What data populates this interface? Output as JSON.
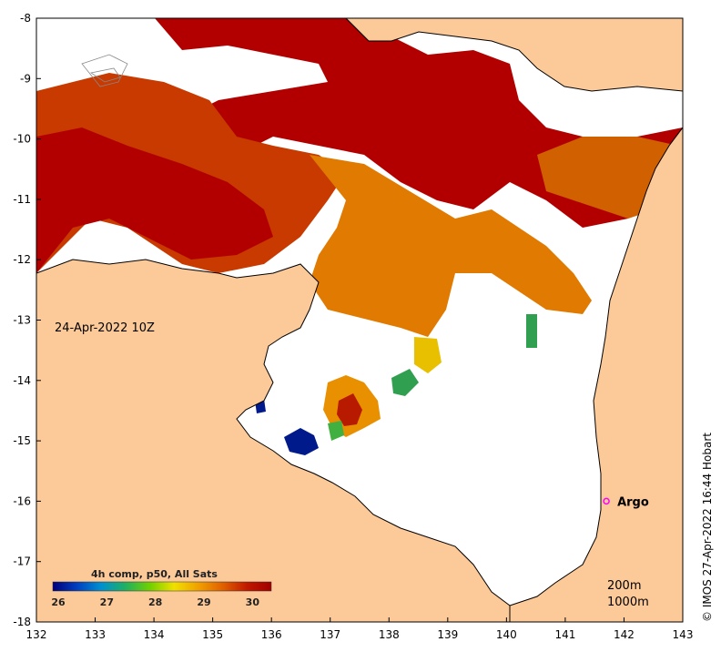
{
  "map": {
    "date_label": "24-Apr-2022 10Z",
    "credit": "© IMOS 27-Apr-2022 16:44 Hobart",
    "depth_labels": [
      "200m",
      "1000m"
    ],
    "x_ticks": [
      "132",
      "133",
      "134",
      "135",
      "136",
      "137",
      "138",
      "139",
      "140",
      "141",
      "142",
      "143"
    ],
    "y_ticks": [
      "-8",
      "-9",
      "-10",
      "-11",
      "-12",
      "-13",
      "-14",
      "-15",
      "-16",
      "-17",
      "-18"
    ],
    "lon_range": [
      132,
      143
    ],
    "lat_range": [
      -18,
      -8
    ],
    "colors": {
      "land": "#FCC999",
      "no_data": "#FFFFFF",
      "hot": "#B20000",
      "warm": "#D45A00",
      "mid": "#E88A00",
      "cool": "#1A9A3A",
      "cold": "#001A8C"
    }
  },
  "colorbar": {
    "title": "4h comp, p50, All Sats",
    "ticks": [
      "26",
      "27",
      "28",
      "29",
      "30"
    ],
    "range": [
      26,
      30.5
    ],
    "colors": [
      "#00007A",
      "#0040C0",
      "#0090D0",
      "#20B060",
      "#70D000",
      "#F0E000",
      "#F0A000",
      "#E06000",
      "#C01800",
      "#A00000"
    ]
  },
  "marker": {
    "label": "Argo",
    "lon": 141.7,
    "lat": -16.0,
    "color": "#FF00FF"
  }
}
